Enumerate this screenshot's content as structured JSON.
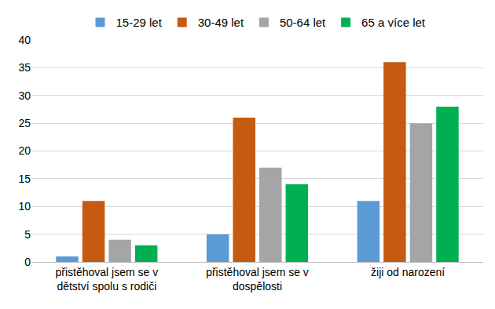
{
  "chart_data": {
    "type": "bar",
    "categories": [
      "přistěhoval jsem se v dětství spolu s rodiči",
      "přistěhoval jsem se v dospělosti",
      "žiji od narození"
    ],
    "series": [
      {
        "name": "15-29 let",
        "color": "#5b9bd5",
        "values": [
          1,
          5,
          11
        ]
      },
      {
        "name": "30-49 let",
        "color": "#c55a11",
        "values": [
          11,
          26,
          36
        ]
      },
      {
        "name": "50-64 let",
        "color": "#a5a5a5",
        "values": [
          4,
          17,
          25
        ]
      },
      {
        "name": "65 a více let",
        "color": "#00b050",
        "values": [
          3,
          14,
          28
        ]
      }
    ],
    "ylim": [
      0,
      40
    ],
    "yticks": [
      0,
      5,
      10,
      15,
      20,
      25,
      30,
      35,
      40
    ],
    "grid": true,
    "legend": "top"
  }
}
